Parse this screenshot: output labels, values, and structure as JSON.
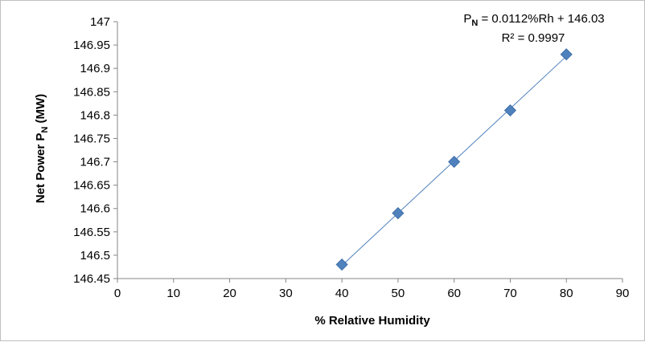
{
  "chart_data": {
    "type": "scatter",
    "x": [
      40,
      50,
      60,
      70,
      80
    ],
    "y": [
      146.48,
      146.59,
      146.7,
      146.81,
      146.93
    ],
    "xlabel": "% Relative Humidity",
    "ylabel_parts": {
      "before": "Net Power P",
      "sub": "N",
      "after": " (MW)"
    },
    "xlim": [
      0,
      90
    ],
    "ylim": [
      146.45,
      147
    ],
    "xticks": [
      "0",
      "10",
      "20",
      "30",
      "40",
      "50",
      "60",
      "70",
      "80",
      "90"
    ],
    "yticks": [
      "146.45",
      "146.5",
      "146.55",
      "146.6",
      "146.65",
      "146.7",
      "146.75",
      "146.8",
      "146.85",
      "146.9",
      "146.95",
      "147"
    ],
    "trendline": {
      "type": "linear",
      "slope": 0.0112,
      "intercept": 146.03
    },
    "equation_parts": {
      "p": "P",
      "sub": "N",
      "rest": " = 0.0112%Rh + 146.03"
    },
    "r_squared_label": "R² = 0.9997",
    "grid": false,
    "legend": "none",
    "colors": {
      "marker": "#4f81bd",
      "trendline": "#4f81bd",
      "axis": "#868686"
    },
    "marker_shape": "diamond"
  }
}
